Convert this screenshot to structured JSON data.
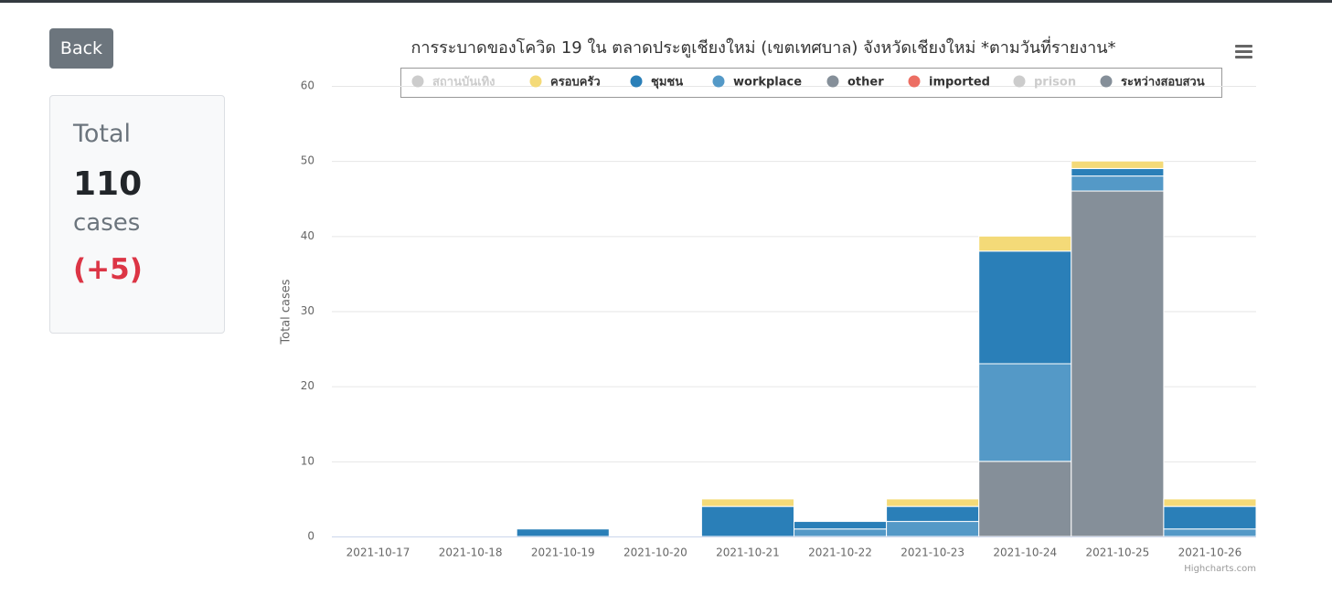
{
  "sidebar": {
    "button": "Back",
    "label": "Total",
    "count": 110,
    "unit": "cases",
    "change": "(+5)"
  },
  "chart_data": {
    "type": "bar",
    "stacked": true,
    "title": "การระบาดของโควิด 19 ใน ตลาดประตูเชียงใหม่ (เขตเทศบาล) จังหวัดเชียงใหม่ *ตามวันที่รายงาน*",
    "y_label": "Total cases",
    "credit": "Highcharts.com",
    "categories": [
      "2021-10-17",
      "2021-10-18",
      "2021-10-19",
      "2021-10-20",
      "2021-10-21",
      "2021-10-22",
      "2021-10-23",
      "2021-10-24",
      "2021-10-25",
      "2021-10-26"
    ],
    "series": [
      {
        "name": "สถานบันเทิง",
        "color": "#cccccc",
        "visible": false,
        "values": [
          0,
          0,
          0,
          0,
          0,
          0,
          0,
          0,
          0,
          0
        ]
      },
      {
        "name": "ครอบครัว",
        "color": "#f4da78",
        "visible": true,
        "values": [
          0,
          0,
          0,
          0,
          1,
          0,
          1,
          2,
          1,
          1
        ]
      },
      {
        "name": "ชุมชน",
        "color": "#2a7fb8",
        "visible": true,
        "values": [
          0,
          0,
          1,
          0,
          4,
          1,
          2,
          15,
          1,
          3
        ]
      },
      {
        "name": "workplace",
        "color": "#5499c7",
        "visible": true,
        "values": [
          0,
          0,
          0,
          0,
          0,
          1,
          2,
          13,
          2,
          1
        ]
      },
      {
        "name": "other",
        "color": "#858f99",
        "visible": true,
        "values": [
          0,
          0,
          0,
          0,
          0,
          0,
          0,
          0,
          0,
          0
        ]
      },
      {
        "name": "imported",
        "color": "#ec6e63",
        "visible": true,
        "values": [
          0,
          0,
          0,
          0,
          0,
          0,
          0,
          0,
          0,
          0
        ]
      },
      {
        "name": "prison",
        "color": "#cccccc",
        "visible": false,
        "values": [
          0,
          0,
          0,
          0,
          0,
          0,
          0,
          0,
          0,
          0
        ]
      },
      {
        "name": "ระหว่างสอบสวน",
        "color": "#858f99",
        "visible": true,
        "values": [
          0,
          0,
          0,
          0,
          0,
          0,
          0,
          10,
          46,
          0
        ]
      }
    ],
    "ylim": [
      0,
      60
    ],
    "yticks": [
      0,
      10,
      20,
      30,
      40,
      50,
      60
    ],
    "grid": true
  }
}
